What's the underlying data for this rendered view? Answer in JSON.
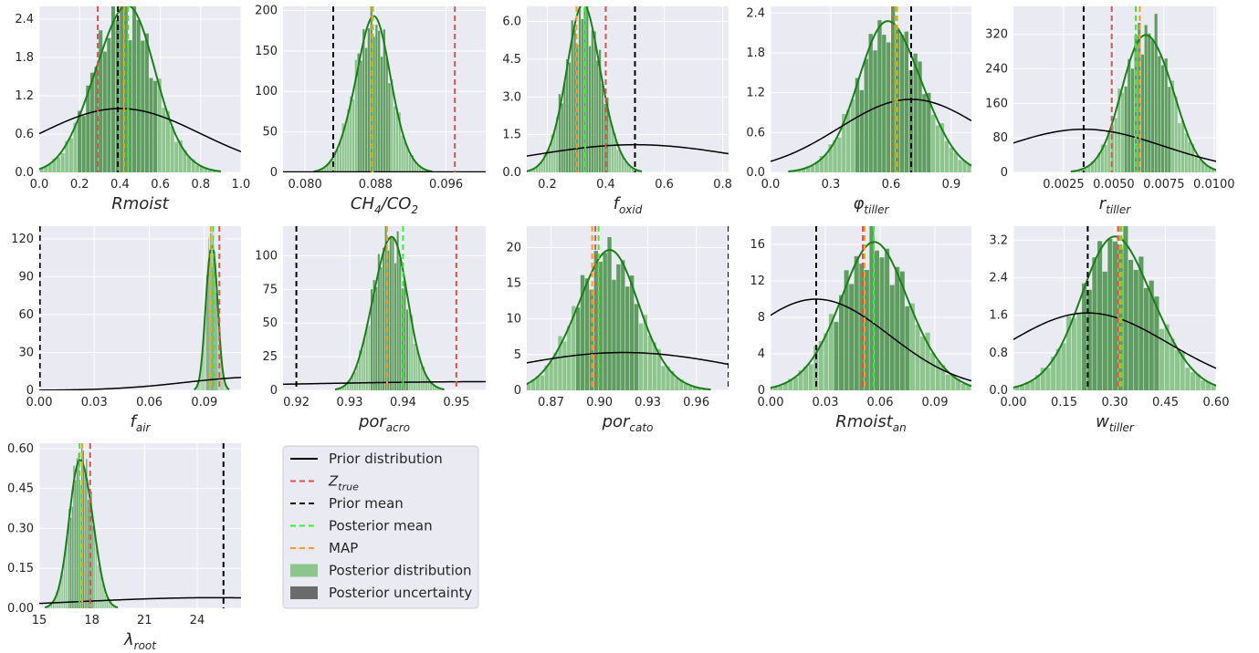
{
  "legend": {
    "entries": [
      {
        "label": "Prior distribution",
        "kind": "line",
        "color": "#000000",
        "dash": false
      },
      {
        "label": "Z",
        "sub": "true",
        "kind": "line",
        "color": "#d9534f",
        "dash": true
      },
      {
        "label": "Prior mean",
        "kind": "line",
        "color": "#000000",
        "dash": true
      },
      {
        "label": "Posterior mean",
        "kind": "line",
        "color": "#33ee33",
        "dash": true
      },
      {
        "label": "MAP",
        "kind": "line",
        "color": "#ff9922",
        "dash": true
      },
      {
        "label": "Posterior distribution",
        "kind": "patch",
        "color": "#8cc68c"
      },
      {
        "label": "Posterior uncertainty",
        "kind": "patch",
        "color": "#6b6b6b"
      }
    ]
  },
  "colors": {
    "axes_bg": "#eaeaf2",
    "grid": "#ffffff",
    "hist": "#8cc68c",
    "hist_dark": "#3a7a3a",
    "kde": "#1a7f1a",
    "prior": "#000000",
    "ztrue": "#d9534f",
    "prior_mean": "#000000",
    "post_mean": "#33ee33",
    "map": "#ff9922"
  },
  "chart_data": [
    {
      "type": "histogram-kde",
      "base": "Rmoist",
      "sub": "",
      "xlim": [
        0.0,
        1.0
      ],
      "ylim": [
        0,
        2.6
      ],
      "xticks": [
        "0.0",
        "0.2",
        "0.4",
        "0.6",
        "0.8",
        "1.0"
      ],
      "xtick_values": [
        0.0,
        0.2,
        0.4,
        0.6,
        0.8,
        1.0
      ],
      "yticks": [
        "0.0",
        "0.6",
        "1.2",
        "1.8",
        "2.4"
      ],
      "ytick_values": [
        0.0,
        0.6,
        1.2,
        1.8,
        2.4
      ],
      "posterior": {
        "mean": 0.42,
        "sd": 0.15,
        "peak": 2.6
      },
      "ci": [
        0.2,
        0.58
      ],
      "prior": {
        "mean": 0.4,
        "sd": 0.4,
        "peak": 1.0
      },
      "ztrue": 0.29,
      "prior_mean": 0.39,
      "post_mean": 0.44,
      "map": 0.42
    },
    {
      "type": "histogram-kde",
      "base": "CH",
      "sub": "4",
      "suffix": "/CO",
      "suffix_sub": "2",
      "xlim": [
        0.0775,
        0.1005
      ],
      "ylim": [
        0,
        205
      ],
      "xticks": [
        "0.080",
        "0.088",
        "0.096"
      ],
      "xtick_values": [
        0.08,
        0.088,
        0.096
      ],
      "yticks": [
        "0",
        "50",
        "100",
        "150",
        "200"
      ],
      "ytick_values": [
        0,
        50,
        100,
        150,
        200
      ],
      "posterior": {
        "mean": 0.0877,
        "sd": 0.0021,
        "peak": 185
      },
      "ci": [
        0.086,
        0.0896
      ],
      "prior": {
        "mean": 0.083,
        "sd": 0.5,
        "peak": 0.5
      },
      "ztrue": 0.097,
      "prior_mean": 0.0832,
      "post_mean": 0.0877,
      "map": 0.0876
    },
    {
      "type": "histogram-kde",
      "base": "f",
      "sub": "oxid",
      "xlim": [
        0.13,
        0.82
      ],
      "ylim": [
        0,
        6.6
      ],
      "xticks": [
        "0.2",
        "0.4",
        "0.6",
        "0.8"
      ],
      "xtick_values": [
        0.2,
        0.4,
        0.6,
        0.8
      ],
      "yticks": [
        "0.0",
        "1.5",
        "3.0",
        "4.5",
        "6.0"
      ],
      "ytick_values": [
        0.0,
        1.5,
        3.0,
        4.5,
        6.0
      ],
      "posterior": {
        "mean": 0.325,
        "sd": 0.062,
        "peak": 6.4
      },
      "ci": [
        0.24,
        0.41
      ],
      "prior": {
        "mean": 0.5,
        "sd": 0.36,
        "peak": 1.1
      },
      "ztrue": 0.4,
      "prior_mean": 0.5,
      "post_mean": 0.33,
      "map": 0.3
    },
    {
      "type": "histogram-kde",
      "base": "φ",
      "sub": "tiller",
      "xlim": [
        0.0,
        1.0
      ],
      "ylim": [
        0,
        2.5
      ],
      "xticks": [
        "0.0",
        "0.3",
        "0.6",
        "0.9"
      ],
      "xtick_values": [
        0.0,
        0.3,
        0.6,
        0.9
      ],
      "yticks": [
        "0.0",
        "0.6",
        "1.2",
        "1.8",
        "2.4"
      ],
      "ytick_values": [
        0.0,
        0.6,
        1.2,
        1.8,
        2.4
      ],
      "posterior": {
        "mean": 0.6,
        "sd": 0.16,
        "peak": 2.25
      },
      "ci": [
        0.43,
        0.8
      ],
      "prior": {
        "mean": 0.7,
        "sd": 0.36,
        "peak": 1.1
      },
      "ztrue": 0.61,
      "prior_mean": 0.7,
      "post_mean": 0.62,
      "map": 0.63
    },
    {
      "type": "histogram-kde",
      "base": "r",
      "sub": "tiller",
      "xlim": [
        0.0,
        0.0101
      ],
      "ylim": [
        0,
        385
      ],
      "xticks": [
        "0.0025",
        "0.0050",
        "0.0075",
        "0.0100"
      ],
      "xtick_values": [
        0.0025,
        0.005,
        0.0075,
        0.01
      ],
      "yticks": [
        "0",
        "80",
        "160",
        "240",
        "320"
      ],
      "ytick_values": [
        0,
        80,
        160,
        240,
        320
      ],
      "posterior": {
        "mean": 0.0067,
        "sd": 0.0012,
        "peak": 330
      },
      "ci": [
        0.0055,
        0.0078
      ],
      "prior": {
        "mean": 0.0035,
        "sd": 0.004,
        "peak": 100
      },
      "ztrue": 0.0049,
      "prior_mean": 0.0035,
      "post_mean": 0.0061,
      "map": 0.0063
    },
    {
      "type": "histogram-kde",
      "base": "f",
      "sub": "air",
      "xlim": [
        0.0,
        0.11
      ],
      "ylim": [
        0,
        130
      ],
      "xticks": [
        "0.00",
        "0.03",
        "0.06",
        "0.09"
      ],
      "xtick_values": [
        0.0,
        0.03,
        0.06,
        0.09
      ],
      "yticks": [
        "0",
        "30",
        "60",
        "90",
        "120"
      ],
      "ytick_values": [
        0,
        30,
        60,
        90,
        120
      ],
      "posterior": {
        "mean": 0.094,
        "sd": 0.003,
        "peak": 120
      },
      "ci": [
        0.091,
        0.097
      ],
      "prior": {
        "mean": 0.12,
        "sd": 0.04,
        "peak": 10.5
      },
      "ztrue": 0.0982,
      "prior_mean": 0.0003,
      "post_mean": 0.0948,
      "map": 0.0935
    },
    {
      "type": "histogram-kde",
      "base": "por",
      "sub": "acro",
      "xlim": [
        0.9175,
        0.9555
      ],
      "ylim": [
        0,
        122
      ],
      "xticks": [
        "0.92",
        "0.93",
        "0.94",
        "0.95"
      ],
      "xtick_values": [
        0.92,
        0.93,
        0.94,
        0.95
      ],
      "yticks": [
        "0",
        "25",
        "50",
        "75",
        "100"
      ],
      "ytick_values": [
        0,
        25,
        50,
        75,
        100
      ],
      "posterior": {
        "mean": 0.9375,
        "sd": 0.0032,
        "peak": 115
      },
      "ci": [
        0.934,
        0.941
      ],
      "prior": {
        "mean": 0.96,
        "sd": 0.05,
        "peak": 6.5
      },
      "ztrue": 0.95,
      "prior_mean": 0.92,
      "post_mean": 0.94,
      "map": 0.937
    },
    {
      "type": "histogram-kde",
      "base": "por",
      "sub": "cato",
      "xlim": [
        0.855,
        0.98
      ],
      "ylim": [
        0,
        23
      ],
      "xticks": [
        "0.87",
        "0.90",
        "0.93",
        "0.96"
      ],
      "xtick_values": [
        0.87,
        0.9,
        0.93,
        0.96
      ],
      "yticks": [
        "0",
        "5",
        "10",
        "15",
        "20"
      ],
      "ytick_values": [
        0,
        5,
        10,
        15,
        20
      ],
      "posterior": {
        "mean": 0.905,
        "sd": 0.02,
        "peak": 19
      },
      "ci": [
        0.885,
        0.925
      ],
      "prior": {
        "mean": 0.915,
        "sd": 0.075,
        "peak": 5.3
      },
      "ztrue": 0.8975,
      "prior_mean": 0.98,
      "post_mean": 0.8995,
      "map": 0.8955
    },
    {
      "type": "histogram-kde",
      "base": "Rmoist",
      "sub": "an",
      "xlim": [
        0.0,
        0.11
      ],
      "ylim": [
        0,
        18
      ],
      "xticks": [
        "0.00",
        "0.03",
        "0.06",
        "0.09"
      ],
      "xtick_values": [
        0.0,
        0.03,
        0.06,
        0.09
      ],
      "yticks": [
        "0",
        "4",
        "8",
        "12",
        "16"
      ],
      "ytick_values": [
        0,
        4,
        8,
        12,
        16
      ],
      "posterior": {
        "mean": 0.057,
        "sd": 0.02,
        "peak": 15.5
      },
      "ci": [
        0.035,
        0.077
      ],
      "prior": {
        "mean": 0.025,
        "sd": 0.04,
        "peak": 10
      },
      "ztrue": 0.0505,
      "prior_mean": 0.025,
      "post_mean": 0.0565,
      "map": 0.0515
    },
    {
      "type": "histogram-kde",
      "base": "w",
      "sub": "tiller",
      "xlim": [
        0.0,
        0.6
      ],
      "ylim": [
        0,
        3.5
      ],
      "xticks": [
        "0.00",
        "0.15",
        "0.30",
        "0.45",
        "0.60"
      ],
      "xtick_values": [
        0.0,
        0.15,
        0.3,
        0.45,
        0.6
      ],
      "yticks": [
        "0.0",
        "0.8",
        "1.6",
        "2.4",
        "3.2"
      ],
      "ytick_values": [
        0.0,
        0.8,
        1.6,
        2.4,
        3.2
      ],
      "posterior": {
        "mean": 0.31,
        "sd": 0.11,
        "peak": 3.2
      },
      "ci": [
        0.21,
        0.43
      ],
      "prior": {
        "mean": 0.22,
        "sd": 0.24,
        "peak": 1.65
      },
      "ztrue": 0.31,
      "prior_mean": 0.22,
      "post_mean": 0.32,
      "map": 0.315
    },
    {
      "type": "histogram-kde",
      "base": "λ",
      "sub": "root",
      "xlim": [
        15.0,
        26.5
      ],
      "ylim": [
        0,
        0.62
      ],
      "xticks": [
        "15",
        "18",
        "21",
        "24"
      ],
      "xtick_values": [
        15,
        18,
        21,
        24
      ],
      "yticks": [
        "0.00",
        "0.15",
        "0.30",
        "0.45",
        "0.60"
      ],
      "ytick_values": [
        0.0,
        0.15,
        0.3,
        0.45,
        0.6
      ],
      "posterior": {
        "mean": 17.4,
        "sd": 0.65,
        "peak": 0.57
      },
      "ci": [
        16.7,
        18.1
      ],
      "prior": {
        "mean": 25.0,
        "sd": 8.0,
        "peak": 0.04
      },
      "ztrue": 17.9,
      "prior_mean": 25.5,
      "post_mean": 17.3,
      "map": 17.45
    }
  ]
}
